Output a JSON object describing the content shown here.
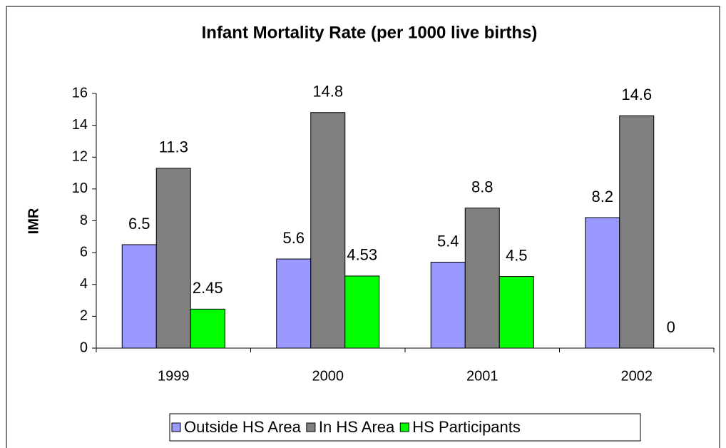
{
  "chart_data": {
    "type": "bar",
    "title": "Infant Mortality Rate (per 1000 live births)",
    "y_label": "IMR",
    "categories": [
      "1999",
      "2000",
      "2001",
      "2002"
    ],
    "series": [
      {
        "name": "Outside HS Area",
        "color": "#9999ff",
        "values": [
          6.5,
          5.6,
          5.4,
          8.2
        ]
      },
      {
        "name": "In HS Area",
        "color": "#808080",
        "values": [
          11.3,
          14.8,
          8.8,
          14.6
        ]
      },
      {
        "name": "HS Participants",
        "color": "#00ff00",
        "values": [
          2.45,
          4.53,
          4.5,
          0
        ]
      }
    ],
    "ylim": [
      0,
      16
    ],
    "yticks": [
      0,
      2,
      4,
      6,
      8,
      10,
      12,
      14,
      16
    ],
    "grid": false,
    "legend": "bottom"
  }
}
